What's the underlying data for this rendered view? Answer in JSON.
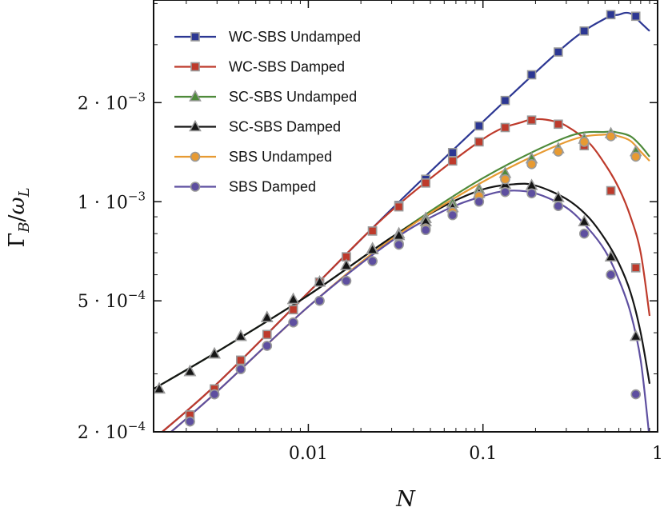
{
  "chart_data": {
    "type": "line",
    "xlabel": "N",
    "ylabel": "Γ_B/ω_L",
    "xscale": "log",
    "yscale": "log",
    "xlim": [
      0.0013,
      1.0
    ],
    "ylim": [
      0.0002,
      0.0041
    ],
    "x_ticks": [
      {
        "value": 0.01,
        "label": "0.01"
      },
      {
        "value": 0.1,
        "label": "0.1"
      },
      {
        "value": 1,
        "label": "1"
      }
    ],
    "y_ticks": [
      {
        "value": 0.0002,
        "mantissa": "2",
        "base": "10",
        "exponent": "−4"
      },
      {
        "value": 0.0005,
        "mantissa": "5",
        "base": "10",
        "exponent": "−4"
      },
      {
        "value": 0.001,
        "mantissa": "1",
        "base": "10",
        "exponent": "−3"
      },
      {
        "value": 0.002,
        "mantissa": "2",
        "base": "10",
        "exponent": "−3"
      }
    ],
    "grid": false,
    "legend_position": "top-left",
    "series": [
      {
        "name": "WC-SBS Undamped",
        "color": "#2c3793",
        "marker": "square",
        "curve_x": [
          0.0013,
          0.003,
          0.01,
          0.03,
          0.1,
          0.3,
          0.5,
          0.6,
          0.66,
          0.72,
          0.8,
          0.9
        ],
        "curve_y": [
          0.00019,
          0.00028,
          0.00053,
          0.00095,
          0.00175,
          0.003,
          0.0036,
          0.0037,
          0.00375,
          0.0037,
          0.0035,
          0.0033
        ],
        "points_x": [
          0.0021,
          0.0029,
          0.0041,
          0.0058,
          0.0082,
          0.0116,
          0.0165,
          0.0233,
          0.033,
          0.047,
          0.067,
          0.095,
          0.134,
          0.19,
          0.27,
          0.38,
          0.54,
          0.75
        ],
        "points_y": [
          0.000225,
          0.00027,
          0.00033,
          0.000395,
          0.00047,
          0.00057,
          0.00068,
          0.000815,
          0.000975,
          0.00117,
          0.00141,
          0.0017,
          0.00203,
          0.00243,
          0.00285,
          0.0033,
          0.0037,
          0.00366
        ]
      },
      {
        "name": "WC-SBS Damped",
        "color": "#be3a2b",
        "marker": "square",
        "curve_x": [
          0.0013,
          0.003,
          0.01,
          0.03,
          0.1,
          0.17,
          0.2,
          0.22,
          0.25,
          0.3,
          0.4,
          0.5,
          0.6,
          0.7,
          0.8,
          0.9
        ],
        "curve_y": [
          0.00019,
          0.00028,
          0.00053,
          0.00094,
          0.00155,
          0.00175,
          0.00178,
          0.00178,
          0.00176,
          0.0017,
          0.00152,
          0.0013,
          0.0011,
          0.0009,
          0.0007,
          0.00045
        ],
        "points_x": [
          0.0021,
          0.0029,
          0.0041,
          0.0058,
          0.0082,
          0.0116,
          0.0165,
          0.0233,
          0.033,
          0.047,
          0.067,
          0.095,
          0.134,
          0.19,
          0.27,
          0.38,
          0.54,
          0.75
        ],
        "points_y": [
          0.000225,
          0.00027,
          0.00033,
          0.000395,
          0.00047,
          0.00057,
          0.00068,
          0.000815,
          0.000965,
          0.00114,
          0.00133,
          0.00152,
          0.00168,
          0.00177,
          0.00172,
          0.00148,
          0.00108,
          0.00063
        ]
      },
      {
        "name": "SC-SBS Undamped",
        "color": "#4e8a3a",
        "marker": "triangle",
        "curve_x": [
          0.0013,
          0.003,
          0.01,
          0.03,
          0.1,
          0.3,
          0.5,
          0.6,
          0.7,
          0.8,
          0.9
        ],
        "curve_y": [
          0.00027,
          0.00035,
          0.00052,
          0.00078,
          0.00118,
          0.00157,
          0.00163,
          0.00162,
          0.00158,
          0.00148,
          0.00137
        ],
        "points_x": [
          0.0014,
          0.0021,
          0.0029,
          0.0041,
          0.0058,
          0.0082,
          0.0116,
          0.0165,
          0.0233,
          0.033,
          0.047,
          0.067,
          0.095,
          0.134,
          0.19,
          0.27,
          0.38,
          0.54,
          0.75
        ],
        "points_y": [
          0.00027,
          0.000305,
          0.000345,
          0.00039,
          0.000445,
          0.000505,
          0.00057,
          0.00064,
          0.00072,
          0.0008,
          0.00089,
          0.00099,
          0.00109,
          0.00122,
          0.00135,
          0.00145,
          0.00155,
          0.00161,
          0.00142
        ]
      },
      {
        "name": "SC-SBS Damped",
        "color": "#151515",
        "marker": "triangle",
        "curve_x": [
          0.0013,
          0.003,
          0.01,
          0.03,
          0.06,
          0.1,
          0.15,
          0.2,
          0.3,
          0.4,
          0.5,
          0.6,
          0.7,
          0.8,
          0.9
        ],
        "curve_y": [
          0.00027,
          0.00035,
          0.00052,
          0.00078,
          0.00097,
          0.00109,
          0.00113,
          0.00112,
          0.00102,
          0.0009,
          0.00077,
          0.00065,
          0.00053,
          0.0004,
          0.00028
        ],
        "points_x": [
          0.0014,
          0.0021,
          0.0029,
          0.0041,
          0.0058,
          0.0082,
          0.0116,
          0.0165,
          0.0233,
          0.033,
          0.047,
          0.067,
          0.095,
          0.134,
          0.19,
          0.27,
          0.38,
          0.54,
          0.75
        ],
        "points_y": [
          0.00027,
          0.000305,
          0.000345,
          0.00039,
          0.000445,
          0.000505,
          0.00057,
          0.00064,
          0.000715,
          0.00079,
          0.00087,
          0.00096,
          0.00106,
          0.00113,
          0.00112,
          0.00103,
          0.00087,
          0.00068,
          0.00039
        ]
      },
      {
        "name": "SBS Undamped",
        "color": "#e79a32",
        "marker": "circle",
        "curve_x": [
          0.0013,
          0.003,
          0.01,
          0.03,
          0.1,
          0.3,
          0.5,
          0.6,
          0.7,
          0.8,
          0.9
        ],
        "curve_y": [
          0.00018,
          0.000265,
          0.00048,
          0.00077,
          0.00115,
          0.00152,
          0.0016,
          0.00158,
          0.00153,
          0.00142,
          0.00133
        ],
        "points_x": [
          0.0021,
          0.0029,
          0.0041,
          0.0058,
          0.0082,
          0.0116,
          0.0165,
          0.0233,
          0.033,
          0.047,
          0.067,
          0.095,
          0.134,
          0.19,
          0.27,
          0.38,
          0.54,
          0.75
        ],
        "points_y": [
          0.000215,
          0.00026,
          0.00031,
          0.000365,
          0.00043,
          0.0005,
          0.000575,
          0.00066,
          0.000745,
          0.00083,
          0.00093,
          0.00104,
          0.00117,
          0.0013,
          0.00142,
          0.00152,
          0.00158,
          0.00137
        ]
      },
      {
        "name": "SBS Damped",
        "color": "#5e4fa0",
        "marker": "circle",
        "curve_x": [
          0.0013,
          0.003,
          0.01,
          0.03,
          0.06,
          0.1,
          0.14,
          0.2,
          0.3,
          0.4,
          0.5,
          0.6,
          0.7,
          0.8,
          0.9
        ],
        "curve_y": [
          0.00018,
          0.000265,
          0.00048,
          0.00076,
          0.00094,
          0.00104,
          0.00108,
          0.00106,
          0.00096,
          0.00083,
          0.00071,
          0.00058,
          0.00046,
          0.00033,
          0.00019
        ],
        "points_x": [
          0.0021,
          0.0029,
          0.0041,
          0.0058,
          0.0082,
          0.0116,
          0.0165,
          0.0233,
          0.033,
          0.047,
          0.067,
          0.095,
          0.134,
          0.19,
          0.27,
          0.38,
          0.54,
          0.75
        ],
        "points_y": [
          0.000215,
          0.00026,
          0.00031,
          0.000365,
          0.00043,
          0.0005,
          0.000575,
          0.00066,
          0.00074,
          0.00082,
          0.00091,
          0.001,
          0.00107,
          0.00106,
          0.00097,
          0.0008,
          0.0006,
          0.00026
        ]
      }
    ]
  }
}
